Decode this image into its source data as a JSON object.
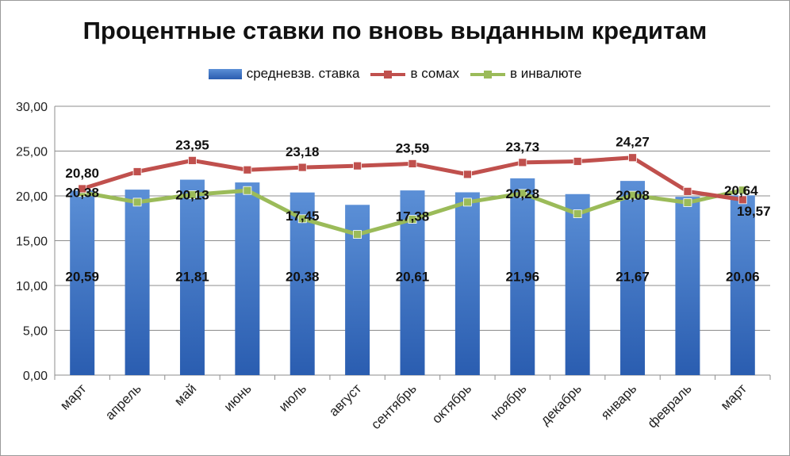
{
  "chart_data": {
    "type": "bar",
    "title": "Процентные ставки по вновь выданным кредитам",
    "categories": [
      "март",
      "апрель",
      "май",
      "июнь",
      "июль",
      "август",
      "сентябрь",
      "октябрь",
      "ноябрь",
      "декабрь",
      "январь",
      "февраль",
      "март"
    ],
    "ylim": [
      0,
      30
    ],
    "yticks": [
      "0,00",
      "5,00",
      "10,00",
      "15,00",
      "20,00",
      "25,00",
      "30,00"
    ],
    "grid": true,
    "legend_position": "top",
    "series": [
      {
        "name": "средневзв. ставка",
        "kind": "bar",
        "color": "#3c6fc4",
        "values": [
          20.59,
          20.7,
          21.81,
          21.5,
          20.38,
          19.0,
          20.61,
          20.4,
          21.96,
          20.2,
          21.67,
          19.9,
          20.06
        ],
        "labels": [
          "20,59",
          "",
          "21,81",
          "",
          "20,38",
          "",
          "20,61",
          "",
          "21,96",
          "",
          "21,67",
          "",
          "20,06"
        ]
      },
      {
        "name": "в сомах",
        "kind": "line",
        "color": "#c0504d",
        "values": [
          20.8,
          22.7,
          23.95,
          22.9,
          23.18,
          23.35,
          23.59,
          22.4,
          23.73,
          23.85,
          24.27,
          20.5,
          19.57
        ],
        "labels": [
          "20,80",
          "",
          "23,95",
          "",
          "23,18",
          "",
          "23,59",
          "",
          "23,73",
          "",
          "24,27",
          "",
          "19,57"
        ]
      },
      {
        "name": "в инвалюте",
        "kind": "line",
        "color": "#9bbb59",
        "values": [
          20.38,
          19.3,
          20.13,
          20.6,
          17.45,
          15.7,
          17.38,
          19.3,
          20.28,
          18.0,
          20.08,
          19.25,
          20.64
        ],
        "labels": [
          "20,38",
          "",
          "20,13",
          "",
          "17,45",
          "",
          "17,38",
          "",
          "20,28",
          "",
          "20,08",
          "",
          "20,64"
        ]
      }
    ]
  }
}
